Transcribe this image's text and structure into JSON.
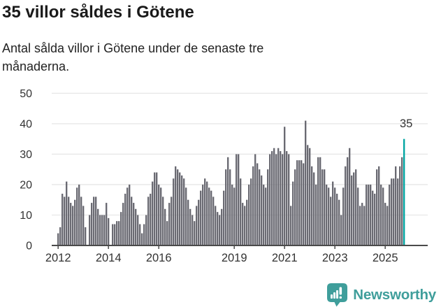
{
  "title": "35 villor såldes i Götene",
  "subtitle": "Antal sålda villor i Götene under de senaste tre månaderna.",
  "annotation": "35",
  "branding": {
    "name": "Newsworthy"
  },
  "colors": {
    "bar": "#6a6a72",
    "highlight": "#00a5a2",
    "grid": "#e7e7e7",
    "axis": "#4a4a4a",
    "tick_text": "#333333",
    "brand": "#3f9e9b"
  },
  "chart_data": {
    "type": "bar",
    "title": "35 villor såldes i Götene",
    "ylabel": "",
    "xlabel": "",
    "frequency": "monthly",
    "x_start": "2012-01",
    "x_end": "2025-10",
    "ylim": [
      0,
      50
    ],
    "grid": true,
    "y_ticks": [
      0,
      10,
      20,
      30,
      40,
      50
    ],
    "x_ticks": [
      {
        "label": "2012",
        "month_index": 0
      },
      {
        "label": "2014",
        "month_index": 24
      },
      {
        "label": "2016",
        "month_index": 48
      },
      {
        "label": "2019",
        "month_index": 84
      },
      {
        "label": "2021",
        "month_index": 108
      },
      {
        "label": "2023",
        "month_index": 132
      },
      {
        "label": "2025",
        "month_index": 156
      }
    ],
    "highlight_last": true,
    "last_value": 35,
    "values": [
      4,
      6,
      17,
      16,
      21,
      16,
      14,
      13,
      15,
      19,
      20,
      16,
      13,
      6,
      0,
      10,
      14,
      16,
      16,
      12,
      10,
      10,
      10,
      14,
      9,
      0,
      7,
      7,
      8,
      8,
      11,
      14,
      17,
      19,
      20,
      16,
      14,
      12,
      10,
      7,
      4,
      7,
      10,
      16,
      17,
      21,
      24,
      24,
      20,
      19,
      16,
      12,
      8,
      14,
      16,
      22,
      26,
      25,
      24,
      23,
      22,
      19,
      15,
      12,
      10,
      8,
      13,
      15,
      18,
      20,
      22,
      21,
      19,
      18,
      16,
      13,
      11,
      10,
      12,
      18,
      25,
      29,
      25,
      20,
      19,
      30,
      30,
      22,
      14,
      13,
      15,
      20,
      22,
      26,
      30,
      27,
      25,
      23,
      20,
      19,
      25,
      30,
      31,
      32,
      30,
      32,
      31,
      30,
      39,
      31,
      30,
      13,
      21,
      25,
      28,
      28,
      28,
      27,
      41,
      33,
      32,
      26,
      24,
      20,
      29,
      29,
      25,
      25,
      20,
      19,
      16,
      21,
      19,
      17,
      15,
      10,
      19,
      26,
      29,
      32,
      23,
      24,
      25,
      19,
      13,
      14,
      13,
      20,
      20,
      20,
      18,
      17,
      25,
      26,
      20,
      19,
      14,
      13,
      20,
      22,
      22,
      26,
      22,
      26,
      29,
      35
    ]
  }
}
